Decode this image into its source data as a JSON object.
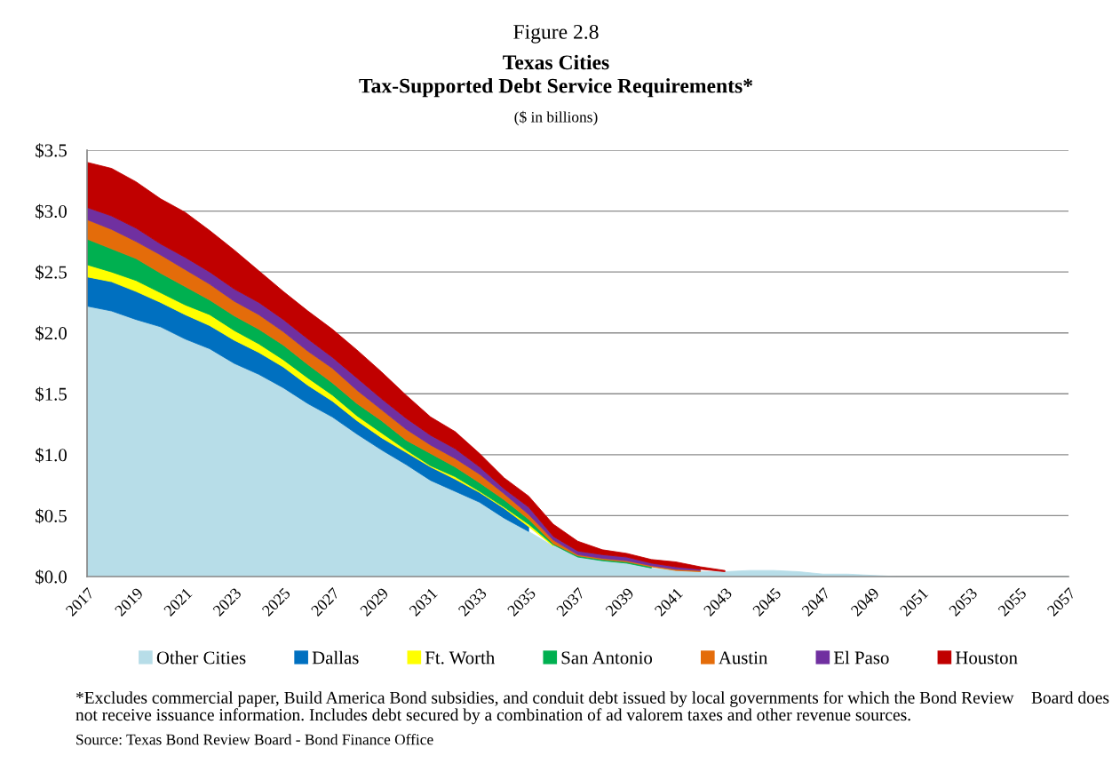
{
  "chart_data": {
    "type": "area",
    "stacked": true,
    "title": "Texas Cities\nTax-Supported Debt Service Requirements*",
    "subtitle": "($ in billions)",
    "annotations": [
      "Figure 2.8",
      "*Excludes commercial paper, Build America Bond subsidies, and conduit debt issued by local governments for which the Bond Review    Board does not receive issuance information. Includes debt secured by a combination of ad valorem taxes and other revenue sources.",
      "Source: Texas Bond Review Board - Bond Finance Office"
    ],
    "x": [
      2017,
      2018,
      2019,
      2020,
      2021,
      2022,
      2023,
      2024,
      2025,
      2026,
      2027,
      2028,
      2029,
      2030,
      2031,
      2032,
      2033,
      2034,
      2035,
      2036,
      2037,
      2038,
      2039,
      2040,
      2041,
      2042,
      2043,
      2044,
      2045,
      2046,
      2047,
      2048,
      2049,
      2050,
      2051,
      2052,
      2053,
      2054,
      2055,
      2056,
      2057
    ],
    "xlim": [
      2017,
      2057
    ],
    "xticks": [
      2017,
      2019,
      2021,
      2023,
      2025,
      2027,
      2029,
      2031,
      2033,
      2035,
      2037,
      2039,
      2041,
      2043,
      2045,
      2047,
      2049,
      2051,
      2053,
      2055,
      2057
    ],
    "ylim": [
      0,
      3.5
    ],
    "yticks": [
      {
        "value": 0,
        "label": "$0.0"
      },
      {
        "value": 0.5,
        "label": "$0.5"
      },
      {
        "value": 1.0,
        "label": "$1.0"
      },
      {
        "value": 1.5,
        "label": "$1.5"
      },
      {
        "value": 2.0,
        "label": "$2.0"
      },
      {
        "value": 2.5,
        "label": "$2.5"
      },
      {
        "value": 3.0,
        "label": "$3.0"
      },
      {
        "value": 3.5,
        "label": "$3.5"
      }
    ],
    "grid": "y",
    "legend": "bottom",
    "series": [
      {
        "name": "Other Cities",
        "color": "#b7dde8",
        "values": [
          2.22,
          2.18,
          2.11,
          2.05,
          1.95,
          1.87,
          1.75,
          1.66,
          1.55,
          1.42,
          1.31,
          1.17,
          1.04,
          0.92,
          0.79,
          0.7,
          0.61,
          0.48,
          0.37,
          0.25,
          0.16,
          0.13,
          0.11,
          0.07,
          0.05,
          0.04,
          0.04,
          0.05,
          0.05,
          0.04,
          0.02,
          0.02,
          0.01,
          0,
          0,
          0,
          0,
          0,
          0,
          0,
          0
        ]
      },
      {
        "name": "Dallas",
        "color": "#0070c0",
        "values": [
          0.24,
          0.24,
          0.23,
          0.2,
          0.2,
          0.19,
          0.19,
          0.18,
          0.17,
          0.15,
          0.13,
          0.11,
          0.1,
          0.1,
          0.11,
          0.1,
          0.08,
          0.08,
          0.04,
          null,
          null,
          null,
          null,
          null,
          null,
          null,
          null,
          null,
          null,
          null,
          null,
          null,
          null,
          null,
          null,
          null,
          null,
          null,
          null,
          null,
          null
        ]
      },
      {
        "name": "Ft. Worth",
        "color": "#ffff00",
        "values": [
          0.1,
          0.08,
          0.09,
          0.08,
          0.08,
          0.09,
          0.08,
          0.07,
          0.06,
          0.06,
          0.05,
          0.04,
          0.04,
          0.02,
          0.01,
          0.02,
          0.01,
          0.01,
          0.02,
          0.01,
          null,
          null,
          null,
          null,
          null,
          null,
          null,
          null,
          null,
          null,
          null,
          null,
          null,
          null,
          null,
          null,
          null,
          null,
          null,
          null,
          null
        ]
      },
      {
        "name": "San Antonio",
        "color": "#00b050",
        "values": [
          0.21,
          0.19,
          0.18,
          0.16,
          0.15,
          0.12,
          0.12,
          0.12,
          0.12,
          0.11,
          0.1,
          0.1,
          0.1,
          0.08,
          0.1,
          0.08,
          0.07,
          0.06,
          0.04,
          0.01,
          0.01,
          0.01,
          0.01,
          0.01,
          null,
          null,
          null,
          null,
          null,
          null,
          null,
          null,
          null,
          null,
          null,
          null,
          null,
          null,
          null,
          null,
          null
        ]
      },
      {
        "name": "Austin",
        "color": "#e46c0a",
        "values": [
          0.16,
          0.16,
          0.14,
          0.15,
          0.14,
          0.13,
          0.12,
          0.12,
          0.11,
          0.11,
          0.12,
          0.11,
          0.09,
          0.09,
          0.07,
          0.07,
          0.07,
          0.05,
          0.04,
          0.03,
          0.01,
          0.01,
          0.01,
          0.01,
          0.01,
          0.01,
          null,
          null,
          null,
          null,
          null,
          null,
          null,
          null,
          null,
          null,
          null,
          null,
          null,
          null,
          null
        ]
      },
      {
        "name": "El Paso",
        "color": "#7030a0",
        "values": [
          0.1,
          0.11,
          0.11,
          0.09,
          0.1,
          0.1,
          0.1,
          0.1,
          0.1,
          0.1,
          0.09,
          0.1,
          0.09,
          0.09,
          0.08,
          0.08,
          0.06,
          0.04,
          0.06,
          0.03,
          0.03,
          0.03,
          0.03,
          0.02,
          0.02,
          0.01,
          null,
          null,
          null,
          null,
          null,
          null,
          null,
          null,
          null,
          null,
          null,
          null,
          null,
          null,
          null
        ]
      },
      {
        "name": "Houston",
        "color": "#c00000",
        "values": [
          0.37,
          0.39,
          0.38,
          0.37,
          0.37,
          0.34,
          0.32,
          0.26,
          0.23,
          0.23,
          0.23,
          0.23,
          0.22,
          0.19,
          0.15,
          0.14,
          0.11,
          0.09,
          0.09,
          0.1,
          0.08,
          0.04,
          0.03,
          0.03,
          0.04,
          0.02,
          0.01,
          null,
          null,
          null,
          null,
          null,
          null,
          null,
          null,
          null,
          null,
          null,
          null,
          null,
          null
        ]
      }
    ]
  }
}
